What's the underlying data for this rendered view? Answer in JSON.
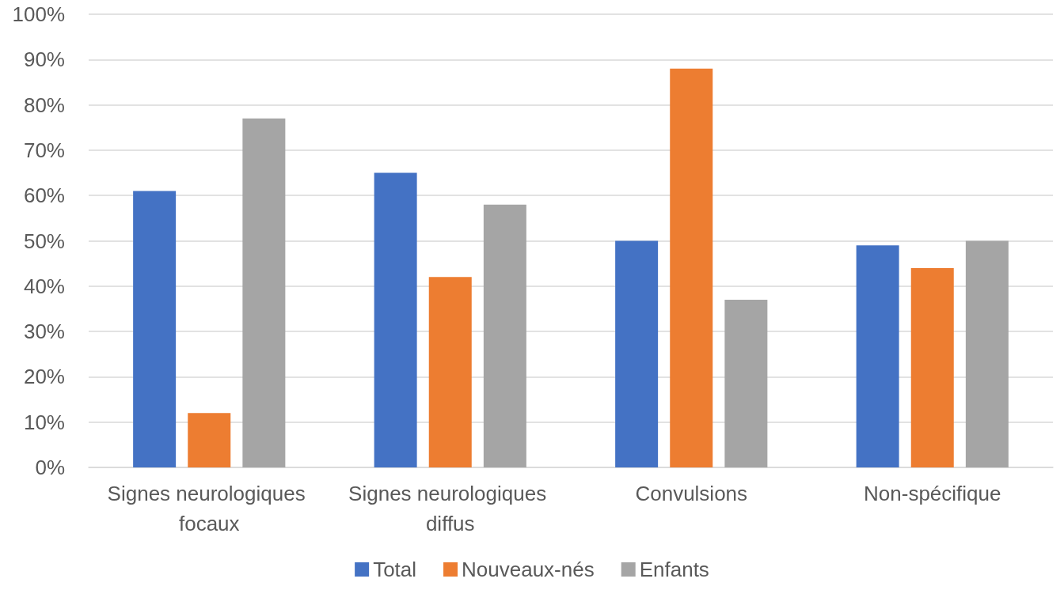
{
  "chart_data": {
    "type": "bar",
    "categories": [
      "Signes neurologiques focaux",
      "Signes neurologiques diffus",
      "Convulsions",
      "Non-spécifique"
    ],
    "series": [
      {
        "name": "Total",
        "color": "#4472c4",
        "values": [
          61,
          65,
          50,
          49
        ]
      },
      {
        "name": "Nouveaux-nés",
        "color": "#ed7d31",
        "values": [
          12,
          42,
          88,
          44
        ]
      },
      {
        "name": "Enfants",
        "color": "#a5a5a5",
        "values": [
          77,
          58,
          37,
          50
        ]
      }
    ],
    "ylim": [
      0,
      100
    ],
    "yticks": [
      {
        "value": 0,
        "label": "0%"
      },
      {
        "value": 10,
        "label": "10%"
      },
      {
        "value": 20,
        "label": "20%"
      },
      {
        "value": 30,
        "label": "30%"
      },
      {
        "value": 40,
        "label": "40%"
      },
      {
        "value": 50,
        "label": "50%"
      },
      {
        "value": 60,
        "label": "60%"
      },
      {
        "value": 70,
        "label": "70%"
      },
      {
        "value": 80,
        "label": "80%"
      },
      {
        "value": 90,
        "label": "90%"
      },
      {
        "value": 100,
        "label": "100%"
      }
    ],
    "grid": "y",
    "legend": "bottom"
  }
}
